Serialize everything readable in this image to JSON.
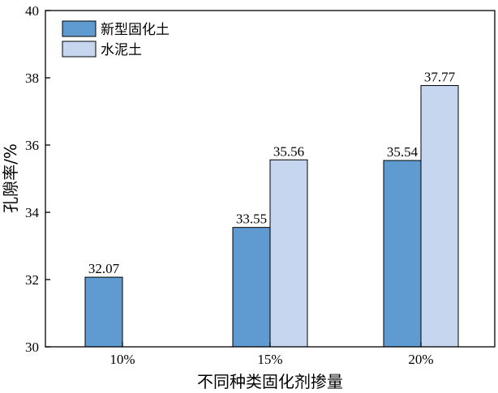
{
  "chart_data": {
    "type": "bar",
    "title": "",
    "xlabel": "不同种类固化剂掺量",
    "ylabel": "孔隙率/%",
    "categories": [
      "10%",
      "15%",
      "20%"
    ],
    "ylim": [
      30,
      40
    ],
    "yticks": [
      30,
      32,
      34,
      36,
      38,
      40
    ],
    "series": [
      {
        "name": "新型固化土",
        "values": [
          32.07,
          33.55,
          35.54
        ],
        "labels": [
          "32.07",
          "33.55",
          "35.54"
        ],
        "color": "#5f9bd1"
      },
      {
        "name": "水泥土",
        "values": [
          null,
          35.56,
          37.77
        ],
        "labels": [
          "",
          "35.56",
          "37.77"
        ],
        "color": "#c5d6ee"
      }
    ],
    "grid": false,
    "legend": "top-left"
  }
}
